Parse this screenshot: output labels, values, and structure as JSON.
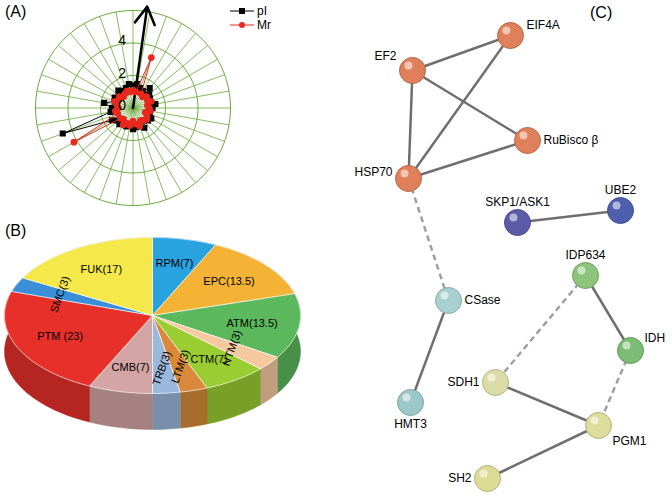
{
  "chart_data": [
    {
      "type": "radar",
      "title": "(A)",
      "categories": [
        null,
        null,
        null,
        null,
        null,
        null,
        null,
        null,
        null,
        null,
        null,
        null,
        null,
        null,
        null,
        null,
        null,
        null,
        null,
        null,
        null,
        null,
        null,
        null,
        null,
        null,
        null,
        null,
        null,
        null,
        null,
        null,
        null,
        null,
        null,
        null
      ],
      "ylim": [
        0,
        6
      ],
      "yticks": [
        0,
        2,
        4
      ],
      "grid": true,
      "legend": "top-right",
      "series": [
        {
          "name": "pI",
          "color": "#000000",
          "marker": "square",
          "values": [
            1.4,
            1.5,
            1.3,
            1.2,
            1.6,
            1.3,
            1.2,
            1.1,
            1.4,
            1.2,
            1.0,
            1.1,
            1.3,
            1.2,
            1.0,
            1.4,
            1.1,
            1.2,
            1.3,
            1.0,
            1.2,
            1.1,
            1.3,
            1.2,
            1.5,
            4.6,
            1.4,
            1.3,
            1.8,
            1.2,
            1.3,
            1.1,
            1.4,
            1.2,
            1.3,
            1.5
          ]
        },
        {
          "name": "Mr",
          "color": "#e8281e",
          "marker": "circle",
          "values": [
            1.1,
            1.0,
            3.3,
            1.0,
            0.9,
            1.1,
            1.0,
            1.2,
            0.9,
            1.0,
            1.1,
            0.8,
            1.0,
            1.1,
            1.0,
            0.9,
            1.2,
            1.0,
            0.8,
            1.1,
            1.0,
            1.2,
            0.9,
            1.0,
            4.2,
            1.0,
            1.1,
            0.9,
            1.0,
            1.2,
            1.0,
            1.1,
            0.9,
            1.0,
            1.1,
            1.0
          ]
        }
      ]
    },
    {
      "type": "pie",
      "title": "(B)",
      "categories": [
        "RPM(7)",
        "EPC(13.5)",
        "ATM(13.5)",
        "NTM(3)",
        "CTM(7)",
        "LTM(3)",
        "TRB(3)",
        "CMB(7)",
        "PTM (23)",
        "SMC(3)",
        "FUK(17)"
      ],
      "values": [
        7,
        13.5,
        13.5,
        3,
        7,
        3,
        3,
        7,
        23,
        3,
        17
      ],
      "colors": [
        "#29a3e0",
        "#f5b335",
        "#5cb85c",
        "#f5c9a0",
        "#9acd32",
        "#d88a3a",
        "#9ab8dd",
        "#d4a5a5",
        "#e8302a",
        "#3a8fd8",
        "#f5e84a"
      ]
    },
    {
      "type": "network",
      "title": "(C)",
      "nodes": [
        {
          "label": "EF2",
          "color": "#e0805a"
        },
        {
          "label": "EIF4A",
          "color": "#e0805a"
        },
        {
          "label": "RuBisco β",
          "color": "#e0805a"
        },
        {
          "label": "HSP70",
          "color": "#e0805a"
        },
        {
          "label": "SKP1/ASK1",
          "color": "#5b5ba8"
        },
        {
          "label": "UBE2",
          "color": "#4e5fae"
        },
        {
          "label": "CSase",
          "color": "#a8d0d0"
        },
        {
          "label": "HMT3",
          "color": "#9cc8c8"
        },
        {
          "label": "IDP634",
          "color": "#8cc47c"
        },
        {
          "label": "IDH",
          "color": "#7cbc74"
        },
        {
          "label": "SDH1",
          "color": "#dcdca8"
        },
        {
          "label": "PGM1",
          "color": "#dcdc9c"
        },
        {
          "label": "SH2",
          "color": "#dcdc94"
        }
      ],
      "edges": [
        {
          "source": 0,
          "target": 1,
          "line_style": "solid"
        },
        {
          "source": 0,
          "target": 3,
          "line_style": "solid"
        },
        {
          "source": 0,
          "target": 2,
          "line_style": "solid"
        },
        {
          "source": 1,
          "target": 3,
          "line_style": "solid"
        },
        {
          "source": 3,
          "target": 2,
          "line_style": "solid"
        },
        {
          "source": 3,
          "target": 6,
          "line_style": "dashed"
        },
        {
          "source": 6,
          "target": 7,
          "line_style": "solid"
        },
        {
          "source": 4,
          "target": 5,
          "line_style": "solid"
        },
        {
          "source": 8,
          "target": 10,
          "line_style": "dashed"
        },
        {
          "source": 8,
          "target": 9,
          "line_style": "solid"
        },
        {
          "source": 9,
          "target": 11,
          "line_style": "dashed"
        },
        {
          "source": 10,
          "target": 11,
          "line_style": "solid"
        },
        {
          "source": 11,
          "target": 12,
          "line_style": "solid"
        }
      ]
    }
  ]
}
